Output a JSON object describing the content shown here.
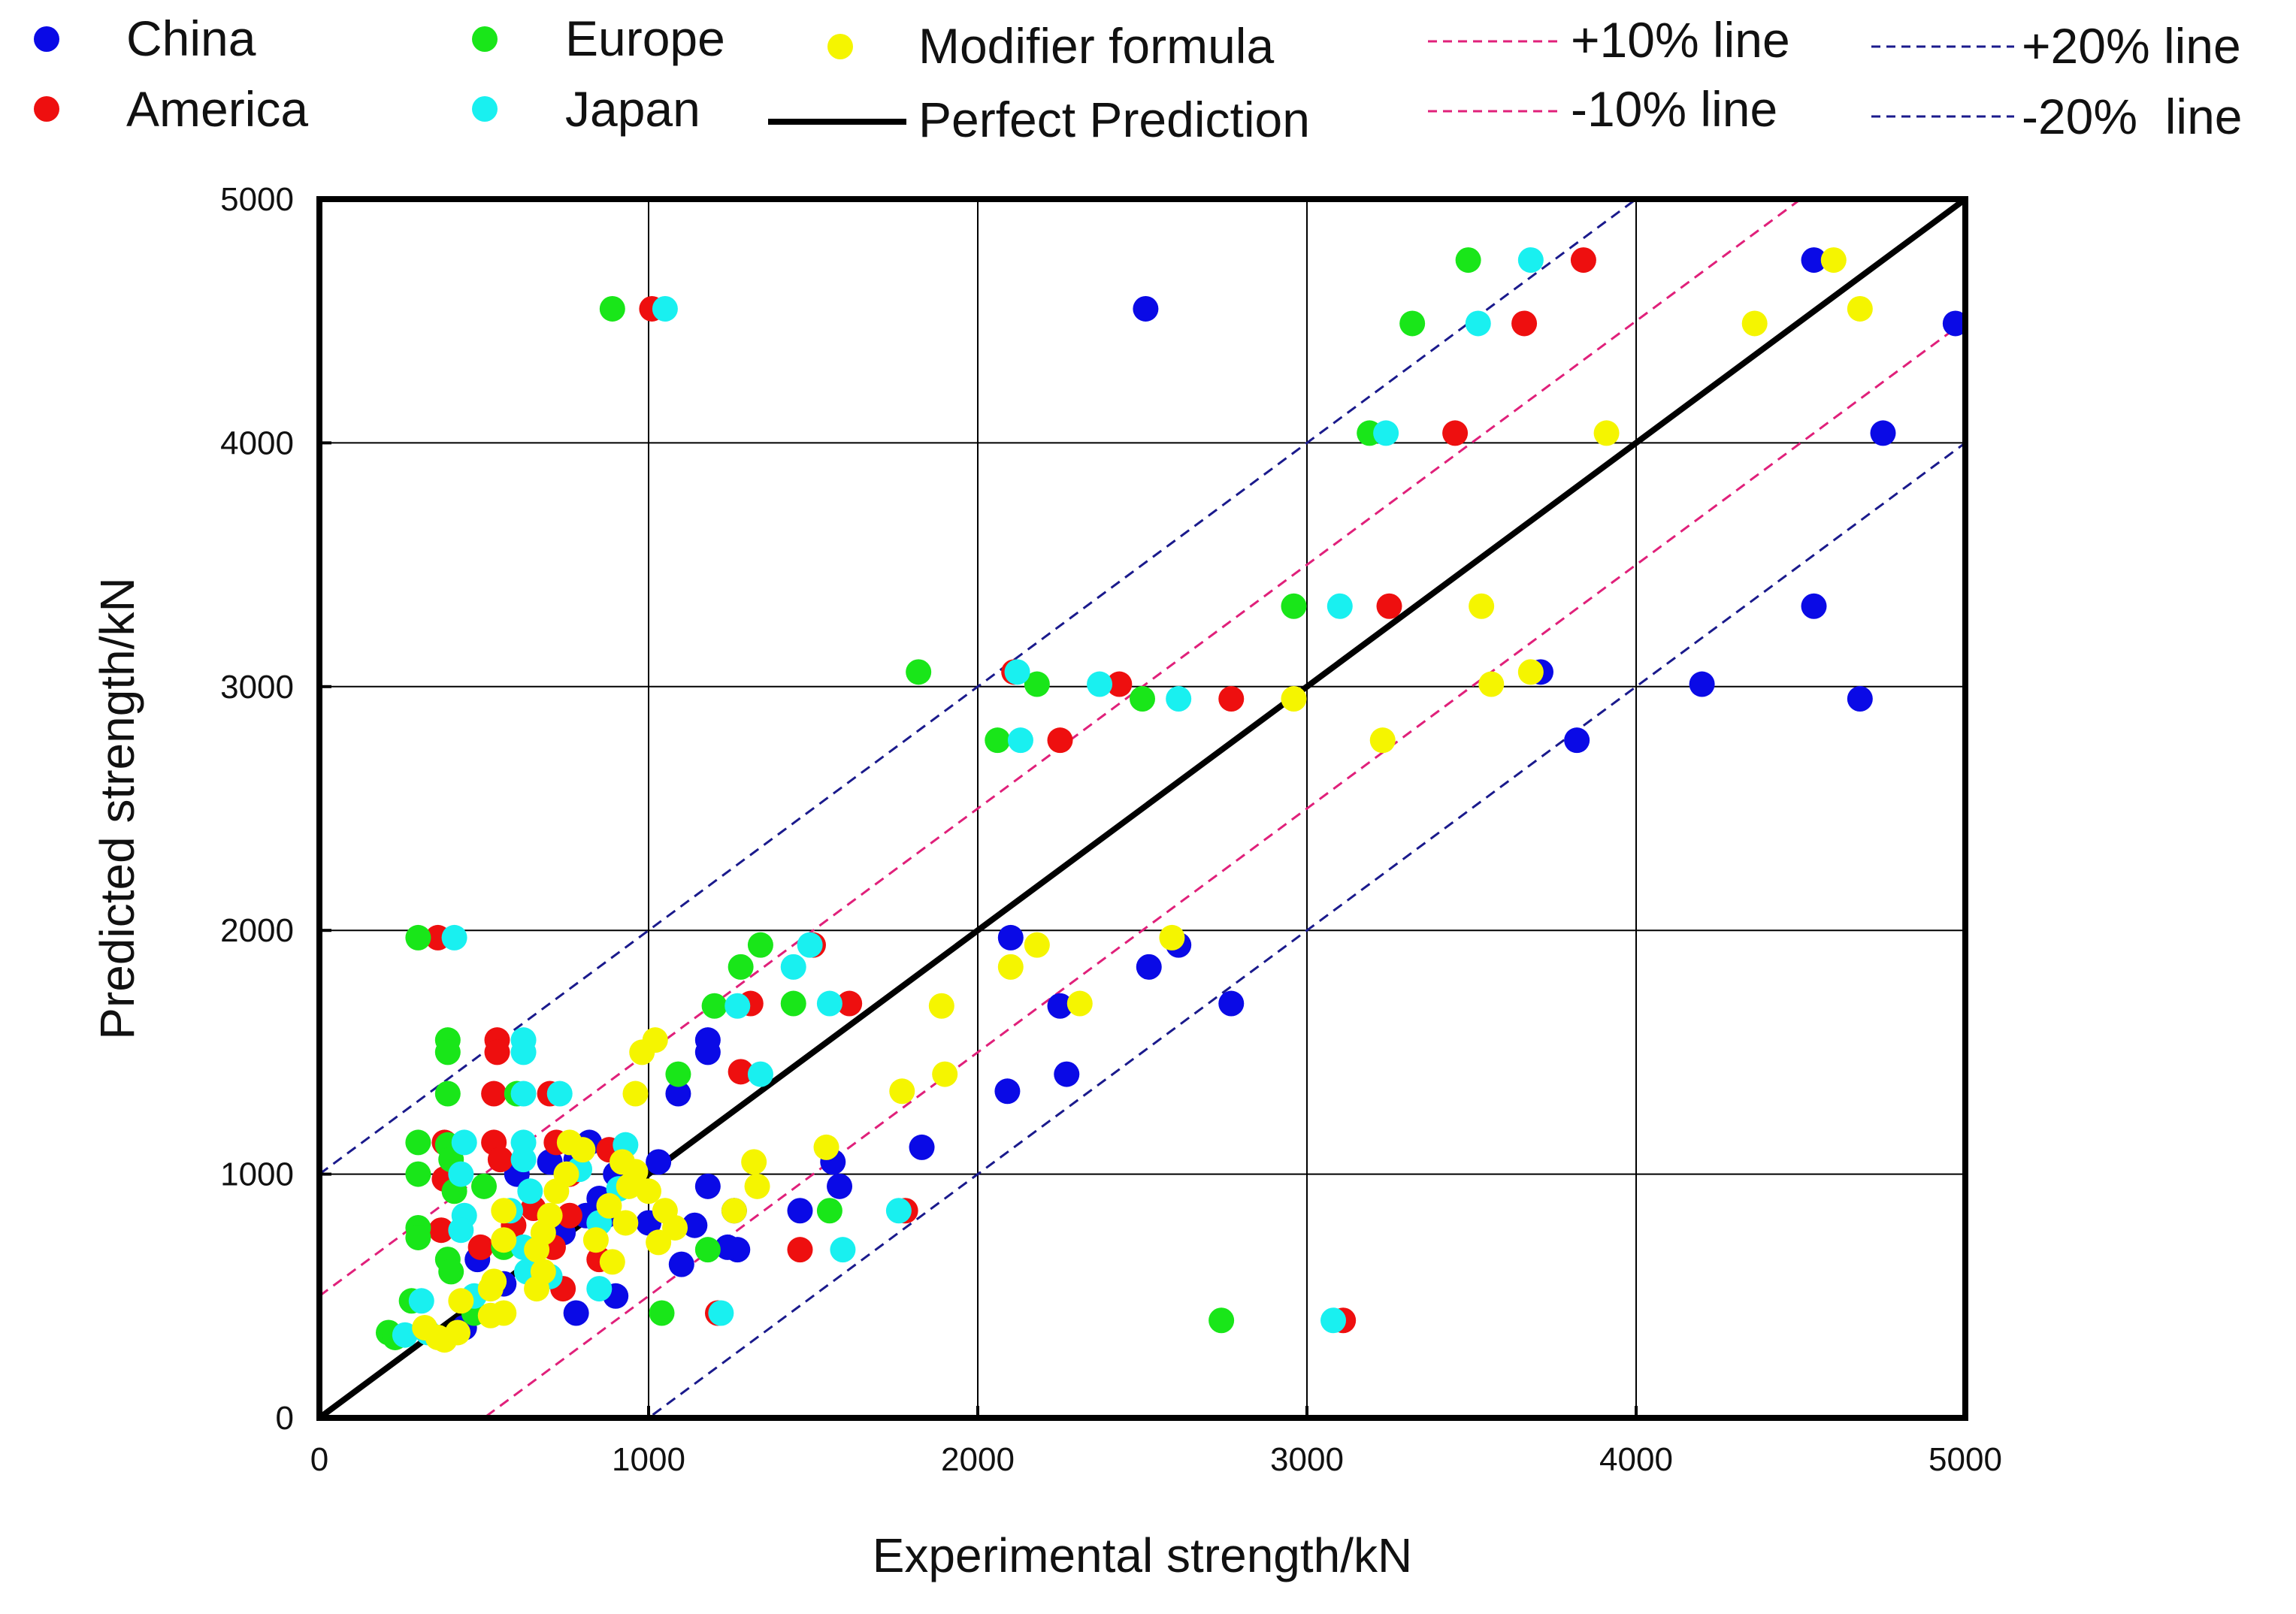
{
  "chart_data": {
    "type": "scatter",
    "title": "",
    "xlabel": "Experimental strength/kN",
    "ylabel": "Predicted strength/kN",
    "xlim": [
      0,
      5000
    ],
    "ylim": [
      0,
      5000
    ],
    "xticks": [
      0,
      1000,
      2000,
      3000,
      4000,
      5000
    ],
    "yticks": [
      0,
      1000,
      2000,
      3000,
      4000,
      5000
    ],
    "grid": true,
    "legend": [
      {
        "label": "China",
        "kind": "marker",
        "color": "#0a0ae6"
      },
      {
        "label": "America",
        "kind": "marker",
        "color": "#ee0f0f"
      },
      {
        "label": "Europe",
        "kind": "marker",
        "color": "#19e619"
      },
      {
        "label": "Japan",
        "kind": "marker",
        "color": "#19f0f0"
      },
      {
        "label": "Modifier formula",
        "kind": "marker",
        "color": "#f5f500"
      },
      {
        "label": "Perfect Prediction",
        "kind": "line",
        "color": "#000000",
        "style": "solid"
      },
      {
        "label": "+10% line",
        "kind": "line",
        "color": "#e0207a",
        "style": "dashed"
      },
      {
        "label": "-10% line",
        "kind": "line",
        "color": "#e0207a",
        "style": "dashed"
      },
      {
        "label": "+20% line",
        "kind": "line",
        "color": "#1a1a8c",
        "style": "dashed"
      },
      {
        "label": "-20%  line",
        "kind": "line",
        "color": "#1a1a8c",
        "style": "dashed"
      }
    ],
    "reference_lines": [
      {
        "name": "Perfect Prediction",
        "equation": "y = x",
        "color": "#000000",
        "style": "solid"
      },
      {
        "name": "+10% line",
        "equation": "y = x + 500",
        "color": "#e0207a",
        "style": "dashed"
      },
      {
        "name": "-10% line",
        "equation": "y = x - 500",
        "color": "#e0207a",
        "style": "dashed"
      },
      {
        "name": "+20% line",
        "equation": "y = x + 1000",
        "color": "#1a1a8c",
        "style": "dashed"
      },
      {
        "name": "-20% line",
        "equation": "y = x - 1000",
        "color": "#1a1a8c",
        "style": "dashed"
      }
    ],
    "series": [
      {
        "name": "China",
        "color": "#0a0ae6",
        "points": [
          [
            4540,
            4750
          ],
          [
            2510,
            4550
          ],
          [
            4970,
            4490
          ],
          [
            4750,
            4040
          ],
          [
            3710,
            3060
          ],
          [
            4200,
            3010
          ],
          [
            4540,
            3330
          ],
          [
            4680,
            2950
          ],
          [
            3820,
            2780
          ],
          [
            2100,
            1970
          ],
          [
            2520,
            1850
          ],
          [
            2610,
            1940
          ],
          [
            2770,
            1700
          ],
          [
            2250,
            1690
          ],
          [
            2090,
            1340
          ],
          [
            2270,
            1410
          ],
          [
            1830,
            1110
          ],
          [
            1560,
            1050
          ],
          [
            1580,
            950
          ],
          [
            1460,
            850
          ],
          [
            1180,
            1550
          ],
          [
            1180,
            1500
          ],
          [
            1090,
            1330
          ],
          [
            1030,
            1050
          ],
          [
            1180,
            950
          ],
          [
            1140,
            790
          ],
          [
            1260,
            850
          ],
          [
            1270,
            690
          ],
          [
            1100,
            630
          ],
          [
            900,
            1000
          ],
          [
            870,
            830
          ],
          [
            810,
            830
          ],
          [
            820,
            1130
          ],
          [
            780,
            1060
          ],
          [
            740,
            760
          ],
          [
            650,
            680
          ],
          [
            780,
            430
          ],
          [
            900,
            500
          ],
          [
            560,
            550
          ],
          [
            440,
            370
          ],
          [
            480,
            650
          ],
          [
            600,
            1000
          ],
          [
            700,
            1050
          ],
          [
            850,
            900
          ],
          [
            1000,
            800
          ],
          [
            1240,
            700
          ]
        ]
      },
      {
        "name": "America",
        "color": "#ee0f0f",
        "points": [
          [
            3840,
            4750
          ],
          [
            3660,
            4490
          ],
          [
            3450,
            4040
          ],
          [
            3250,
            3330
          ],
          [
            2430,
            3010
          ],
          [
            2770,
            2950
          ],
          [
            2110,
            3060
          ],
          [
            2250,
            2780
          ],
          [
            1010,
            4550
          ],
          [
            1610,
            1700
          ],
          [
            1500,
            1940
          ],
          [
            1310,
            1700
          ],
          [
            1280,
            1420
          ],
          [
            1460,
            690
          ],
          [
            1780,
            850
          ],
          [
            1210,
            430
          ],
          [
            3110,
            400
          ],
          [
            360,
            1970
          ],
          [
            540,
            1550
          ],
          [
            540,
            1500
          ],
          [
            530,
            1330
          ],
          [
            530,
            1130
          ],
          [
            550,
            1060
          ],
          [
            700,
            1330
          ],
          [
            720,
            1130
          ],
          [
            760,
            1000
          ],
          [
            760,
            830
          ],
          [
            710,
            700
          ],
          [
            740,
            530
          ],
          [
            850,
            650
          ],
          [
            380,
            1130
          ],
          [
            380,
            980
          ],
          [
            370,
            770
          ],
          [
            490,
            700
          ],
          [
            590,
            790
          ],
          [
            880,
            1100
          ],
          [
            650,
            860
          ]
        ]
      },
      {
        "name": "Europe",
        "color": "#19e619",
        "points": [
          [
            3490,
            4750
          ],
          [
            3320,
            4490
          ],
          [
            3190,
            4040
          ],
          [
            2960,
            3330
          ],
          [
            2180,
            3010
          ],
          [
            2060,
            2780
          ],
          [
            2500,
            2950
          ],
          [
            1820,
            3060
          ],
          [
            890,
            4550
          ],
          [
            1340,
            1940
          ],
          [
            1280,
            1850
          ],
          [
            1200,
            1690
          ],
          [
            1440,
            1700
          ],
          [
            1090,
            1410
          ],
          [
            1550,
            850
          ],
          [
            1180,
            690
          ],
          [
            1040,
            430
          ],
          [
            2740,
            400
          ],
          [
            300,
            1970
          ],
          [
            390,
            1550
          ],
          [
            390,
            1500
          ],
          [
            390,
            1330
          ],
          [
            300,
            1130
          ],
          [
            300,
            1000
          ],
          [
            300,
            780
          ],
          [
            300,
            740
          ],
          [
            390,
            650
          ],
          [
            400,
            600
          ],
          [
            390,
            1120
          ],
          [
            400,
            1060
          ],
          [
            410,
            930
          ],
          [
            280,
            480
          ],
          [
            210,
            350
          ],
          [
            230,
            330
          ],
          [
            500,
            950
          ],
          [
            600,
            1330
          ],
          [
            560,
            700
          ],
          [
            470,
            430
          ]
        ]
      },
      {
        "name": "Japan",
        "color": "#19f0f0",
        "points": [
          [
            3680,
            4750
          ],
          [
            3520,
            4490
          ],
          [
            3240,
            4040
          ],
          [
            3100,
            3330
          ],
          [
            2370,
            3010
          ],
          [
            2130,
            2780
          ],
          [
            2610,
            2950
          ],
          [
            2120,
            3060
          ],
          [
            1050,
            4550
          ],
          [
            1490,
            1940
          ],
          [
            1440,
            1850
          ],
          [
            1270,
            1690
          ],
          [
            1550,
            1700
          ],
          [
            1340,
            1410
          ],
          [
            1760,
            850
          ],
          [
            1590,
            690
          ],
          [
            1220,
            430
          ],
          [
            3080,
            400
          ],
          [
            410,
            1970
          ],
          [
            620,
            1550
          ],
          [
            620,
            1500
          ],
          [
            620,
            1330
          ],
          [
            730,
            1330
          ],
          [
            440,
            1130
          ],
          [
            620,
            1130
          ],
          [
            430,
            1000
          ],
          [
            440,
            830
          ],
          [
            430,
            770
          ],
          [
            620,
            1060
          ],
          [
            640,
            930
          ],
          [
            620,
            700
          ],
          [
            630,
            600
          ],
          [
            700,
            580
          ],
          [
            850,
            800
          ],
          [
            790,
            1020
          ],
          [
            930,
            1120
          ],
          [
            910,
            940
          ],
          [
            850,
            530
          ],
          [
            330,
            350
          ],
          [
            260,
            340
          ],
          [
            310,
            480
          ],
          [
            470,
            500
          ],
          [
            580,
            850
          ]
        ]
      },
      {
        "name": "Modifier formula",
        "color": "#f5f500",
        "points": [
          [
            4600,
            4750
          ],
          [
            4360,
            4490
          ],
          [
            4680,
            4550
          ],
          [
            3910,
            4040
          ],
          [
            3530,
            3330
          ],
          [
            3560,
            3010
          ],
          [
            3680,
            3060
          ],
          [
            3230,
            2780
          ],
          [
            2960,
            2950
          ],
          [
            2590,
            1970
          ],
          [
            2180,
            1940
          ],
          [
            2100,
            1850
          ],
          [
            1890,
            1690
          ],
          [
            2310,
            1700
          ],
          [
            1900,
            1410
          ],
          [
            1770,
            1340
          ],
          [
            1540,
            1110
          ],
          [
            1320,
            1050
          ],
          [
            1330,
            950
          ],
          [
            1260,
            850
          ],
          [
            980,
            1500
          ],
          [
            1020,
            1550
          ],
          [
            960,
            1330
          ],
          [
            920,
            1050
          ],
          [
            930,
            800
          ],
          [
            890,
            640
          ],
          [
            1050,
            850
          ],
          [
            1030,
            720
          ],
          [
            1000,
            930
          ],
          [
            760,
            1130
          ],
          [
            800,
            1100
          ],
          [
            750,
            1000
          ],
          [
            720,
            930
          ],
          [
            700,
            830
          ],
          [
            680,
            760
          ],
          [
            660,
            690
          ],
          [
            680,
            600
          ],
          [
            660,
            530
          ],
          [
            560,
            850
          ],
          [
            560,
            730
          ],
          [
            530,
            560
          ],
          [
            520,
            530
          ],
          [
            520,
            420
          ],
          [
            560,
            430
          ],
          [
            430,
            480
          ],
          [
            420,
            350
          ],
          [
            360,
            330
          ],
          [
            320,
            370
          ],
          [
            380,
            320
          ],
          [
            840,
            730
          ],
          [
            880,
            870
          ],
          [
            940,
            950
          ],
          [
            960,
            1010
          ],
          [
            1080,
            780
          ]
        ]
      }
    ]
  }
}
